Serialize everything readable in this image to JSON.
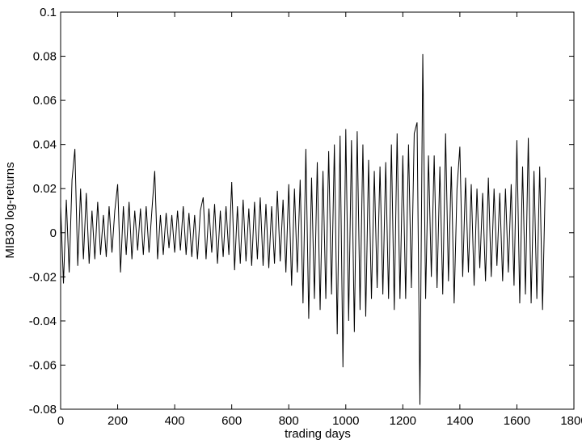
{
  "chart_data": {
    "type": "line",
    "xlabel": "trading days",
    "ylabel": "MIB30 log-returns",
    "x": [
      0,
      10,
      20,
      30,
      40,
      50,
      60,
      70,
      80,
      90,
      100,
      110,
      120,
      130,
      140,
      150,
      160,
      170,
      180,
      190,
      200,
      210,
      220,
      230,
      240,
      250,
      260,
      270,
      280,
      290,
      300,
      310,
      320,
      330,
      340,
      350,
      360,
      370,
      380,
      390,
      400,
      410,
      420,
      430,
      440,
      450,
      460,
      470,
      480,
      490,
      500,
      510,
      520,
      530,
      540,
      550,
      560,
      570,
      580,
      590,
      600,
      610,
      620,
      630,
      640,
      650,
      660,
      670,
      680,
      690,
      700,
      710,
      720,
      730,
      740,
      750,
      760,
      770,
      780,
      790,
      800,
      810,
      820,
      830,
      840,
      850,
      860,
      870,
      880,
      890,
      900,
      910,
      920,
      930,
      940,
      950,
      960,
      970,
      980,
      990,
      1000,
      1010,
      1020,
      1030,
      1040,
      1050,
      1060,
      1070,
      1080,
      1090,
      1100,
      1110,
      1120,
      1130,
      1140,
      1150,
      1160,
      1170,
      1180,
      1190,
      1200,
      1210,
      1220,
      1230,
      1240,
      1250,
      1260,
      1270,
      1280,
      1290,
      1300,
      1310,
      1320,
      1330,
      1340,
      1350,
      1360,
      1370,
      1380,
      1390,
      1400,
      1410,
      1420,
      1430,
      1440,
      1450,
      1460,
      1470,
      1480,
      1490,
      1500,
      1510,
      1520,
      1530,
      1540,
      1550,
      1560,
      1570,
      1580,
      1590,
      1600,
      1610,
      1620,
      1630,
      1640,
      1650,
      1660,
      1670,
      1680,
      1690,
      1700
    ],
    "series": [
      {
        "color": "#000000",
        "values": [
          0.012,
          -0.023,
          0.015,
          -0.018,
          0.024,
          0.038,
          -0.015,
          0.02,
          -0.012,
          0.018,
          -0.014,
          0.01,
          -0.012,
          0.014,
          -0.01,
          0.008,
          -0.011,
          0.012,
          -0.009,
          0.01,
          0.022,
          -0.018,
          0.012,
          -0.01,
          0.014,
          -0.012,
          0.01,
          -0.008,
          0.011,
          -0.01,
          0.012,
          -0.009,
          0.01,
          0.028,
          -0.012,
          0.008,
          -0.01,
          0.009,
          -0.007,
          0.008,
          -0.009,
          0.01,
          -0.008,
          0.012,
          -0.01,
          0.009,
          -0.011,
          0.008,
          -0.012,
          0.01,
          0.016,
          -0.012,
          0.011,
          -0.009,
          0.013,
          -0.014,
          0.01,
          -0.011,
          0.012,
          -0.01,
          0.023,
          -0.017,
          0.012,
          -0.014,
          0.015,
          -0.013,
          0.011,
          -0.015,
          0.014,
          -0.012,
          0.016,
          -0.015,
          0.013,
          -0.016,
          0.012,
          -0.014,
          0.019,
          -0.013,
          0.015,
          -0.018,
          0.022,
          -0.024,
          0.02,
          -0.018,
          0.024,
          -0.032,
          0.038,
          -0.039,
          0.025,
          -0.03,
          0.032,
          -0.035,
          0.028,
          -0.03,
          0.037,
          -0.028,
          0.04,
          -0.046,
          0.044,
          -0.061,
          0.047,
          -0.04,
          0.042,
          -0.045,
          0.046,
          -0.035,
          0.04,
          -0.038,
          0.033,
          -0.03,
          0.028,
          -0.025,
          0.03,
          -0.028,
          0.032,
          -0.03,
          0.04,
          -0.035,
          0.045,
          -0.03,
          0.035,
          -0.03,
          0.04,
          -0.025,
          0.045,
          0.05,
          -0.078,
          0.081,
          -0.03,
          0.035,
          -0.02,
          0.035,
          -0.025,
          0.03,
          -0.028,
          0.045,
          -0.022,
          0.03,
          -0.032,
          0.02,
          0.039,
          -0.02,
          0.025,
          -0.018,
          0.022,
          -0.024,
          0.02,
          -0.016,
          0.018,
          -0.022,
          0.025,
          -0.02,
          0.02,
          -0.015,
          0.018,
          -0.022,
          0.02,
          -0.018,
          0.022,
          -0.024,
          0.042,
          -0.032,
          0.03,
          -0.028,
          0.043,
          -0.032,
          0.028,
          -0.03,
          0.03,
          -0.035,
          0.025
        ]
      }
    ],
    "xlim": [
      0,
      1800
    ],
    "xticks": [
      0,
      200,
      400,
      600,
      800,
      1000,
      1200,
      1400,
      1600,
      1800
    ],
    "ylim": [
      -0.08,
      0.1
    ],
    "yticks": [
      -0.08,
      -0.06,
      -0.04,
      -0.02,
      0,
      0.02,
      0.04,
      0.06,
      0.08,
      0.1
    ],
    "grid": false
  }
}
